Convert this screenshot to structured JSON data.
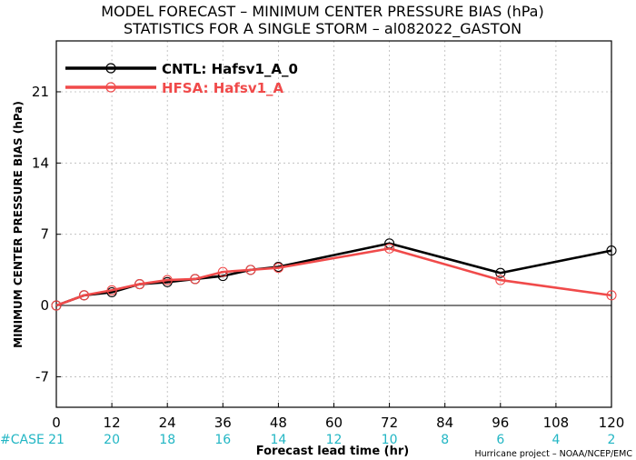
{
  "chart_data": {
    "type": "line",
    "title": "MODEL FORECAST – MINIMUM CENTER PRESSURE BIAS (hPa)",
    "subtitle": "STATISTICS FOR A SINGLE STORM – al082022_GASTON",
    "xlabel": "Forecast lead time (hr)",
    "ylabel": "MINIMUM CENTER PRESSURE BIAS (hPa)",
    "xlim": [
      0,
      120
    ],
    "ylim": [
      -10,
      26
    ],
    "x_ticks": [
      "0",
      "12",
      "24",
      "36",
      "48",
      "60",
      "72",
      "84",
      "96",
      "108",
      "120"
    ],
    "y_ticks": [
      "-7",
      "0",
      "7",
      "14",
      "21"
    ],
    "grid": true,
    "legend_position": "top-left",
    "case_label": "#CASE",
    "case_counts": [
      "21",
      "20",
      "18",
      "16",
      "14",
      "12",
      "10",
      "8",
      "6",
      "4",
      "2"
    ],
    "credit": "Hurricane project – NOAA/NCEP/EMC",
    "series": [
      {
        "name": "CNTL: Hafsv1_A_0",
        "color": "#000000",
        "x": [
          0,
          6,
          12,
          18,
          24,
          30,
          36,
          42,
          48,
          72,
          96,
          120
        ],
        "y": [
          0.0,
          1.0,
          1.3,
          2.1,
          2.3,
          2.6,
          2.9,
          3.5,
          3.8,
          6.1,
          3.2,
          5.4
        ]
      },
      {
        "name": "HFSA: Hafsv1_A",
        "color": "#f04a4a",
        "x": [
          0,
          6,
          12,
          18,
          24,
          30,
          36,
          42,
          48,
          72,
          96,
          120
        ],
        "y": [
          0.0,
          1.0,
          1.5,
          2.1,
          2.5,
          2.6,
          3.3,
          3.5,
          3.7,
          5.6,
          2.5,
          1.0
        ]
      }
    ]
  }
}
